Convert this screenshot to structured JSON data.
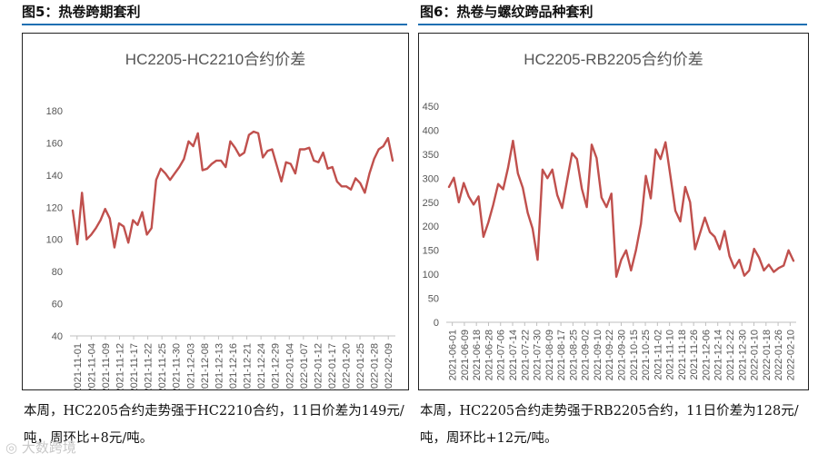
{
  "figures": [
    {
      "heading": "图5：热卷跨期套利",
      "caption": "本周，HC2205合约走势强于HC2210合约，11日价差为149元/吨，周环比+8元/吨。"
    },
    {
      "heading": "图6：热卷与螺纹跨品种套利",
      "caption": "本周，HC2205合约走势强于RB2205合约，11日价差为128元/吨，周环比+12元/吨。"
    }
  ],
  "watermark": "大数跨境",
  "colors": {
    "line": "#c0504d",
    "rule": "#1f6fb2",
    "grid": "#d9d9d9"
  },
  "chart_data": [
    {
      "type": "line",
      "title": "HC2205-HC2210合约价差",
      "ylim": [
        40,
        180
      ],
      "yticks": [
        40,
        60,
        80,
        100,
        120,
        140,
        160,
        180
      ],
      "xticks": [
        "2021-11-01",
        "2021-11-04",
        "2021-11-09",
        "2021-11-12",
        "2021-11-17",
        "2021-11-22",
        "2021-11-25",
        "2021-11-30",
        "2021-12-03",
        "2021-12-08",
        "2021-12-13",
        "2021-12-16",
        "2021-12-21",
        "2021-12-24",
        "2021-12-29",
        "2022-01-04",
        "2022-01-07",
        "2022-01-12",
        "2022-01-17",
        "2022-01-20",
        "2022-01-25",
        "2022-01-28",
        "2022-02-09"
      ],
      "grid": false,
      "values": [
        118,
        97,
        129,
        100,
        103,
        107,
        112,
        119,
        113,
        95,
        110,
        108,
        98,
        112,
        109,
        117,
        103,
        107,
        137,
        144,
        141,
        137,
        141,
        145,
        150,
        161,
        158,
        166,
        143,
        144,
        147,
        149,
        149,
        145,
        161,
        157,
        152,
        154,
        165,
        167,
        166,
        151,
        155,
        156,
        146,
        136,
        148,
        147,
        141,
        156,
        156,
        157,
        149,
        148,
        154,
        144,
        145,
        136,
        133,
        133,
        131,
        138,
        135,
        129,
        141,
        150,
        156,
        158,
        163,
        149
      ]
    },
    {
      "type": "line",
      "title": "HC2205-RB2205合约价差",
      "ylim": [
        0,
        450
      ],
      "yticks": [
        0,
        50,
        100,
        150,
        200,
        250,
        300,
        350,
        400,
        450
      ],
      "xticks": [
        "2021-06-01",
        "2021-06-09",
        "2021-06-18",
        "2021-06-28",
        "2021-07-06",
        "2021-07-14",
        "2021-07-22",
        "2021-07-30",
        "2021-08-09",
        "2021-08-17",
        "2021-08-25",
        "2021-09-02",
        "2021-09-10",
        "2021-09-22",
        "2021-09-30",
        "2021-10-15",
        "2021-10-25",
        "2021-11-02",
        "2021-11-10",
        "2021-11-18",
        "2021-11-26",
        "2021-12-06",
        "2021-12-14",
        "2021-12-22",
        "2021-12-30",
        "2022-01-10",
        "2022-01-18",
        "2022-01-26",
        "2022-02-10"
      ],
      "grid": false,
      "values": [
        282,
        301,
        250,
        290,
        262,
        245,
        262,
        178,
        208,
        245,
        288,
        277,
        322,
        378,
        310,
        280,
        228,
        195,
        130,
        318,
        300,
        318,
        265,
        238,
        295,
        352,
        340,
        278,
        240,
        370,
        342,
        260,
        240,
        268,
        95,
        130,
        150,
        108,
        150,
        205,
        305,
        258,
        360,
        340,
        375,
        305,
        232,
        210,
        282,
        250,
        152,
        185,
        218,
        188,
        178,
        152,
        190,
        138,
        113,
        130,
        97,
        108,
        153,
        135,
        108,
        120,
        105,
        113,
        118,
        150,
        128
      ]
    }
  ]
}
